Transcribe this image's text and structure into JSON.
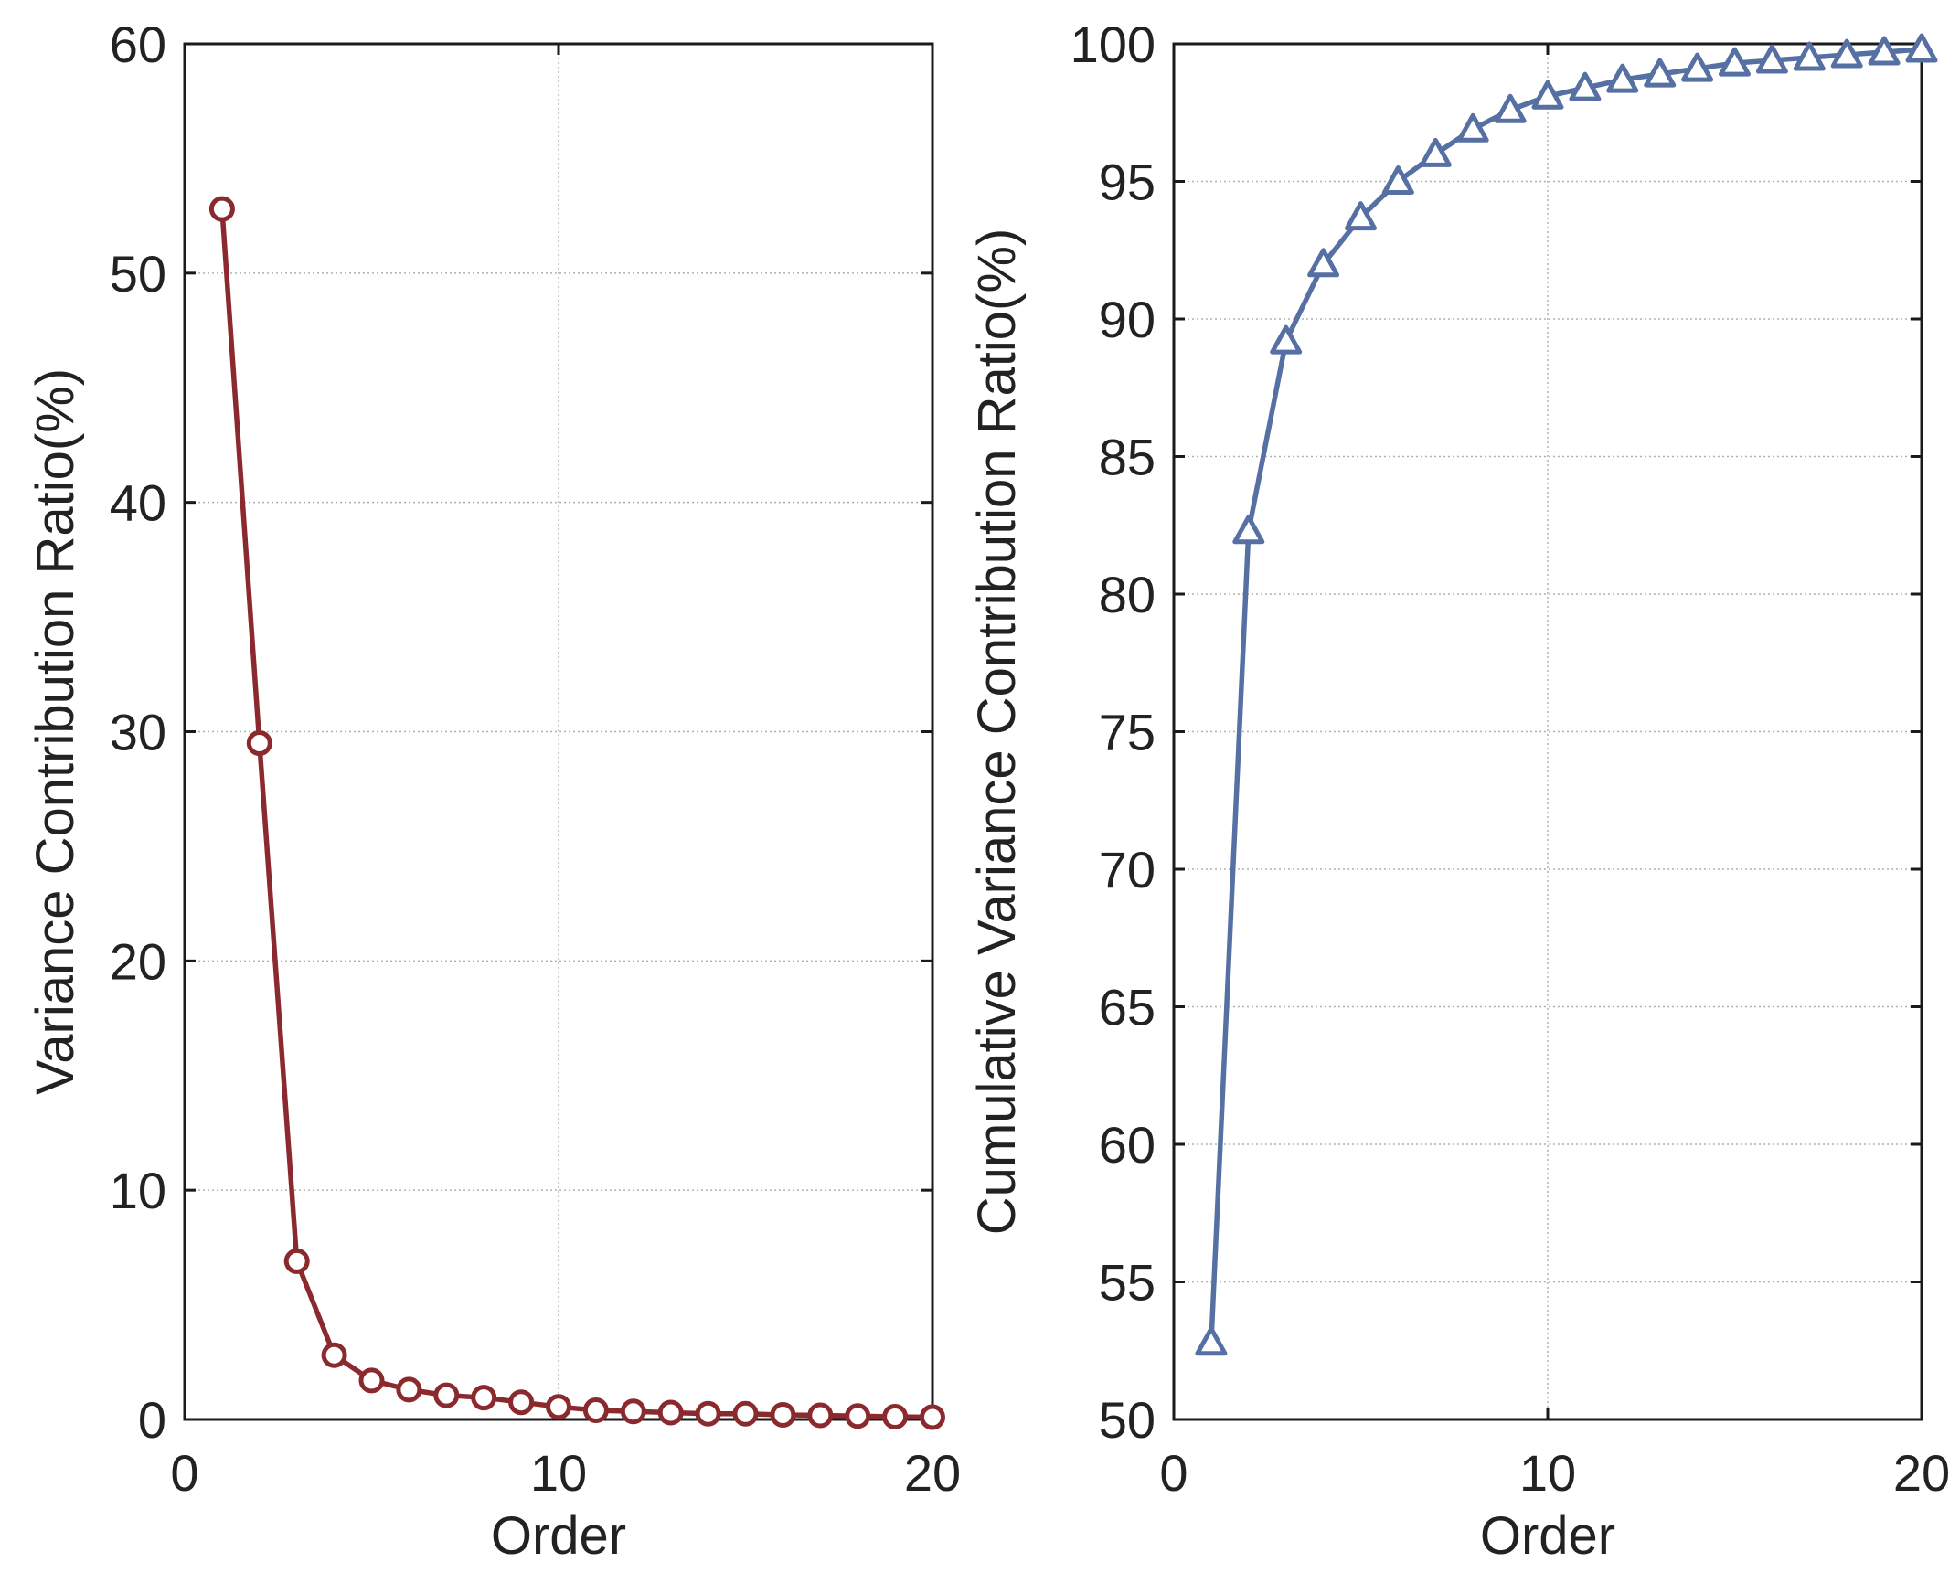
{
  "chart_data": [
    {
      "type": "line",
      "marker": "circle",
      "color": "#8b2a2e",
      "xlabel": "Order",
      "ylabel": "Variance Contribution Ratio(%)",
      "xlim": [
        0,
        20
      ],
      "ylim": [
        0,
        60
      ],
      "xticks": [
        0,
        10,
        20
      ],
      "yticks": [
        0,
        10,
        20,
        30,
        40,
        50,
        60
      ],
      "grid": true,
      "x": [
        1,
        2,
        3,
        4,
        5,
        6,
        7,
        8,
        9,
        10,
        11,
        12,
        13,
        14,
        15,
        16,
        17,
        18,
        19,
        20
      ],
      "y": [
        52.8,
        29.5,
        6.9,
        2.8,
        1.7,
        1.3,
        1.05,
        0.95,
        0.75,
        0.55,
        0.4,
        0.35,
        0.3,
        0.25,
        0.25,
        0.2,
        0.18,
        0.15,
        0.12,
        0.1
      ]
    },
    {
      "type": "line",
      "marker": "triangle",
      "color": "#5670a3",
      "xlabel": "Order",
      "ylabel": "Cumulative Variance Contribution Ratio(%)",
      "xlim": [
        0,
        20
      ],
      "ylim": [
        50,
        100
      ],
      "xticks": [
        0,
        10,
        20
      ],
      "yticks": [
        50,
        55,
        60,
        65,
        70,
        75,
        80,
        85,
        90,
        95,
        100
      ],
      "grid": true,
      "x": [
        1,
        2,
        3,
        4,
        5,
        6,
        7,
        8,
        9,
        10,
        11,
        12,
        13,
        14,
        15,
        16,
        17,
        18,
        19,
        20
      ],
      "y": [
        52.8,
        82.3,
        89.2,
        92.0,
        93.7,
        95.0,
        96.0,
        96.9,
        97.6,
        98.1,
        98.4,
        98.7,
        98.9,
        99.1,
        99.3,
        99.4,
        99.5,
        99.6,
        99.7,
        99.8
      ]
    }
  ]
}
